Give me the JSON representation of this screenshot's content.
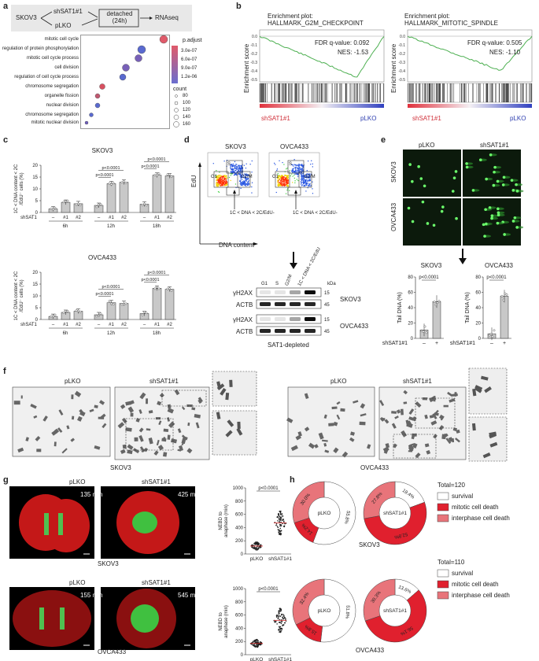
{
  "panels": {
    "a": "a",
    "b": "b",
    "c": "c",
    "d": "d",
    "e": "e",
    "f": "f",
    "g": "g",
    "h": "h"
  },
  "a": {
    "schema": {
      "cell": "SKOV3",
      "kd": "shSAT1#1",
      "ctrl": "pLKO",
      "box": "detached\n(24h)",
      "out": "RNAseq"
    },
    "terms": [
      "mitotic cell cycle",
      "regulation of protein phosphorylation",
      "mitotic cell cycle process",
      "cell division",
      "regulation of cell cycle process",
      "chromosome segregation",
      "organelle fission",
      "nuclear division",
      "chromosome segregation",
      "mitotic nuclear division"
    ],
    "padj_title": "p.adjust",
    "padj_ticks": [
      "3.0e-07",
      "6.0e-07",
      "9.0e-07",
      "1.2e-06"
    ],
    "count_title": "count",
    "count_ticks": [
      "80",
      "100",
      "120",
      "140",
      "160"
    ]
  },
  "b": {
    "plots": [
      {
        "title": "Enrichment plot:\nHALLMARK_G2M_CHECKPOINT",
        "fdr": "FDR q-value: 0.092",
        "nes": "NES: -1.53",
        "left": "shSAT1#1",
        "right": "pLKO"
      },
      {
        "title": "Enrichment plot:\nHALLMARK_MITOTIC_SPINDLE",
        "fdr": "FDR q-value: 0.505",
        "nes": "NES: -1.10",
        "left": "shSAT1#1",
        "right": "pLKO"
      }
    ],
    "ylabel": "Enrichment score",
    "yticks": [
      "0.0",
      "-0.1",
      "-0.2",
      "-0.3",
      "-0.4",
      "-0.5"
    ]
  },
  "c": {
    "top": {
      "title": "SKOV3"
    },
    "bottom": {
      "title": "OVCA433"
    },
    "ylabel": "1C < DNA content < 2C\n/EdU⁻ cells (%)",
    "yticks": [
      "0",
      "5",
      "10",
      "15",
      "20"
    ],
    "row_label": "shSAT1",
    "conds": [
      "–",
      "#1",
      "#2"
    ],
    "times": [
      "6h",
      "12h",
      "18h"
    ],
    "pval": "p<0.0001",
    "chart_data": [
      {
        "type": "bar",
        "title": "SKOV3",
        "categories": [
          "6h –",
          "6h #1",
          "6h #2",
          "12h –",
          "12h #1",
          "12h #2",
          "18h –",
          "18h #1",
          "18h #2"
        ],
        "values": [
          1.5,
          4.3,
          3.7,
          3.0,
          12.2,
          12.8,
          3.5,
          15.8,
          15.5
        ],
        "ylim": [
          0,
          20
        ]
      },
      {
        "type": "bar",
        "title": "OVCA433",
        "categories": [
          "6h –",
          "6h #1",
          "6h #2",
          "12h –",
          "12h #1",
          "12h #2",
          "18h –",
          "18h #1",
          "18h #2"
        ],
        "values": [
          1.3,
          3.0,
          3.5,
          2.0,
          7.1,
          6.8,
          2.5,
          13.2,
          12.8
        ],
        "ylim": [
          0,
          20
        ]
      }
    ]
  },
  "d": {
    "flow": [
      "SKOV3",
      "OVCA433"
    ],
    "gates": [
      "G1",
      "S",
      "G2/M"
    ],
    "gate_label": "1C < DNA < 2C/EdU-",
    "yaxis": "EdU",
    "xaxis": "DNA content",
    "blot_cols": [
      "G1",
      "S",
      "G2/M",
      "1C < DNA < 2C/EdU"
    ],
    "kda": "kDa",
    "rows": [
      "γH2AX",
      "ACTB"
    ],
    "mw": [
      "15",
      "45"
    ],
    "cells": [
      "SKOV3",
      "OVCA433"
    ],
    "footer": "SAT1-depleted"
  },
  "e": {
    "cols": [
      "pLKO",
      "shSAT1#1"
    ],
    "rows": [
      "SKOV3",
      "OVCA433"
    ],
    "charts": [
      {
        "title": "SKOV3",
        "ylabel": "Tail DNA (%)",
        "yticks": [
          "0",
          "20",
          "40",
          "60",
          "80"
        ],
        "pval": "p<0.0001",
        "xlabel": "shSAT1#1",
        "conds": [
          "–",
          "+"
        ]
      },
      {
        "title": "OVCA433",
        "ylabel": "Tail DNA (%)",
        "yticks": [
          "0",
          "20",
          "40",
          "60",
          "80"
        ],
        "pval": "p<0.0001",
        "xlabel": "shSAT1#1",
        "conds": [
          "–",
          "+"
        ]
      }
    ],
    "chart_data": [
      {
        "type": "bar",
        "title": "SKOV3",
        "categories": [
          "–",
          "+"
        ],
        "values": [
          11,
          48
        ],
        "ylim": [
          0,
          80
        ]
      },
      {
        "type": "bar",
        "title": "OVCA433",
        "categories": [
          "–",
          "+"
        ],
        "values": [
          6,
          55
        ],
        "ylim": [
          0,
          80
        ]
      }
    ]
  },
  "f": {
    "labels": [
      "pLKO",
      "shSAT1#1",
      "pLKO",
      "shSAT1#1"
    ],
    "cells": [
      "SKOV3",
      "OVCA433"
    ]
  },
  "g": {
    "cols": [
      "pLKO",
      "shSAT1#1"
    ],
    "times": [
      "135 min",
      "425 min",
      "155 min",
      "545 min"
    ],
    "cells": [
      "SKOV3",
      "OVCA433"
    ],
    "ylabel": "NEBD to\nanaphase (min)",
    "yticks": [
      "0",
      "200",
      "400",
      "600",
      "800",
      "1000"
    ],
    "pval": "p<0.0001",
    "xcats": [
      "pLKO",
      "shSAT1#1"
    ],
    "chart_data": [
      {
        "type": "scatter",
        "title": "SKOV3",
        "categories": [
          "pLKO",
          "shSAT1#1"
        ],
        "values": [
          120,
          470
        ],
        "ylim": [
          0,
          1000
        ]
      },
      {
        "type": "scatter",
        "title": "OVCA433",
        "categories": [
          "pLKO",
          "shSAT1#1"
        ],
        "values": [
          170,
          520
        ],
        "ylim": [
          0,
          1000
        ]
      }
    ]
  },
  "h": {
    "total1": "Total=120",
    "total2": "Total=110",
    "legend": [
      "survival",
      "mitotic cell death",
      "interphase cell death"
    ],
    "cells": [
      "SKOV3",
      "OVCA433"
    ],
    "centers": [
      "pLKO",
      "shSAT1#1"
    ],
    "chart_data": [
      {
        "type": "pie",
        "title": "SKOV3 pLKO",
        "categories": [
          "survival",
          "mitotic cell death",
          "interphase cell death"
        ],
        "values": [
          55.8,
          14.2,
          30.0
        ]
      },
      {
        "type": "pie",
        "title": "SKOV3 shSAT1#1",
        "categories": [
          "survival",
          "mitotic cell death",
          "interphase cell death"
        ],
        "values": [
          19.4,
          52.8,
          27.8
        ]
      },
      {
        "type": "pie",
        "title": "OVCA433 pLKO",
        "categories": [
          "survival",
          "mitotic cell death",
          "interphase cell death"
        ],
        "values": [
          51.8,
          15.8,
          32.4
        ]
      },
      {
        "type": "pie",
        "title": "OVCA433 shSAT1#1",
        "categories": [
          "survival",
          "mitotic cell death",
          "interphase cell death"
        ],
        "values": [
          13.6,
          56.1,
          30.3
        ]
      }
    ],
    "pct": [
      [
        "55.8%",
        "14.2%",
        "30.0%"
      ],
      [
        "19.4%",
        "52.8%",
        "27.8%"
      ],
      [
        "51.8%",
        "15.8%",
        "32.4%"
      ],
      [
        "13.6%",
        "56.1%",
        "30.3%"
      ]
    ]
  },
  "colors": {
    "survival": "#ffffff",
    "mitotic": "#e0202e",
    "interphase": "#e8747a",
    "gsea": "#4caf50",
    "bar": "#c8c8c8"
  }
}
